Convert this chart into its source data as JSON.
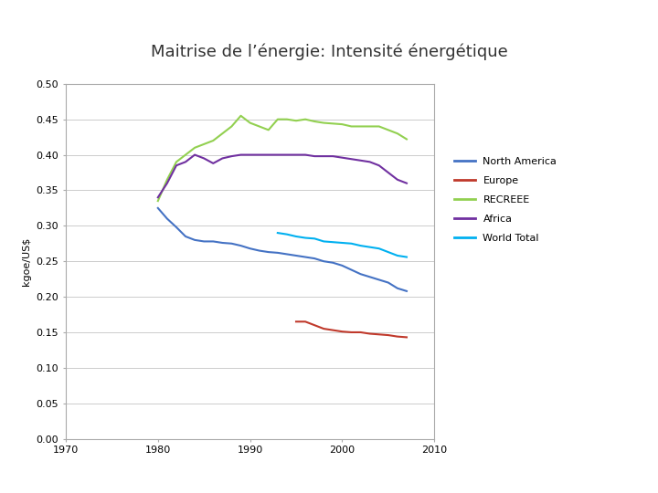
{
  "title": "Maitrise de l’énergie: Intensité énergétique",
  "ylabel": "kgoe/US$",
  "xlim": [
    1970,
    2010
  ],
  "ylim": [
    0.0,
    0.5
  ],
  "yticks": [
    0.0,
    0.05,
    0.1,
    0.15,
    0.2,
    0.25,
    0.3,
    0.35,
    0.4,
    0.45,
    0.5
  ],
  "xticks": [
    1970,
    1980,
    1990,
    2000,
    2010
  ],
  "background_color": "#ffffff",
  "title_fontsize": 13,
  "top_bar_left_color": "#00A896",
  "top_bar_right_color": "#5B9BD5",
  "series": {
    "North America": {
      "color": "#4472C4",
      "x": [
        1980,
        1981,
        1982,
        1983,
        1984,
        1985,
        1986,
        1987,
        1988,
        1989,
        1990,
        1991,
        1992,
        1993,
        1994,
        1995,
        1996,
        1997,
        1998,
        1999,
        2000,
        2001,
        2002,
        2003,
        2004,
        2005,
        2006,
        2007
      ],
      "y": [
        0.325,
        0.31,
        0.298,
        0.285,
        0.28,
        0.278,
        0.278,
        0.276,
        0.275,
        0.272,
        0.268,
        0.265,
        0.263,
        0.262,
        0.26,
        0.258,
        0.256,
        0.254,
        0.25,
        0.248,
        0.244,
        0.238,
        0.232,
        0.228,
        0.224,
        0.22,
        0.212,
        0.208
      ]
    },
    "Europe": {
      "color": "#C0392B",
      "x": [
        1995,
        1996,
        1997,
        1998,
        1999,
        2000,
        2001,
        2002,
        2003,
        2004,
        2005,
        2006,
        2007
      ],
      "y": [
        0.165,
        0.165,
        0.16,
        0.155,
        0.153,
        0.151,
        0.15,
        0.15,
        0.148,
        0.147,
        0.146,
        0.144,
        0.143
      ]
    },
    "RECREEE": {
      "color": "#92D050",
      "x": [
        1980,
        1981,
        1982,
        1983,
        1984,
        1985,
        1986,
        1987,
        1988,
        1989,
        1990,
        1991,
        1992,
        1993,
        1994,
        1995,
        1996,
        1997,
        1998,
        1999,
        2000,
        2001,
        2002,
        2003,
        2004,
        2005,
        2006,
        2007
      ],
      "y": [
        0.335,
        0.365,
        0.39,
        0.4,
        0.41,
        0.415,
        0.42,
        0.43,
        0.44,
        0.455,
        0.445,
        0.44,
        0.435,
        0.45,
        0.45,
        0.448,
        0.45,
        0.447,
        0.445,
        0.444,
        0.443,
        0.44,
        0.44,
        0.44,
        0.44,
        0.435,
        0.43,
        0.422
      ]
    },
    "Africa": {
      "color": "#7030A0",
      "x": [
        1980,
        1981,
        1982,
        1983,
        1984,
        1985,
        1986,
        1987,
        1988,
        1989,
        1990,
        1991,
        1992,
        1993,
        1994,
        1995,
        1996,
        1997,
        1998,
        1999,
        2000,
        2001,
        2002,
        2003,
        2004,
        2005,
        2006,
        2007
      ],
      "y": [
        0.34,
        0.36,
        0.385,
        0.39,
        0.4,
        0.395,
        0.388,
        0.395,
        0.398,
        0.4,
        0.4,
        0.4,
        0.4,
        0.4,
        0.4,
        0.4,
        0.4,
        0.398,
        0.398,
        0.398,
        0.396,
        0.394,
        0.392,
        0.39,
        0.385,
        0.375,
        0.365,
        0.36
      ]
    },
    "World Total": {
      "color": "#00B0F0",
      "x": [
        1993,
        1994,
        1995,
        1996,
        1997,
        1998,
        1999,
        2000,
        2001,
        2002,
        2003,
        2004,
        2005,
        2006,
        2007
      ],
      "y": [
        0.29,
        0.288,
        0.285,
        0.283,
        0.282,
        0.278,
        0.277,
        0.276,
        0.275,
        0.272,
        0.27,
        0.268,
        0.263,
        0.258,
        0.256
      ]
    }
  },
  "legend_order": [
    "North America",
    "Europe",
    "RECREEE",
    "Africa",
    "World Total"
  ]
}
